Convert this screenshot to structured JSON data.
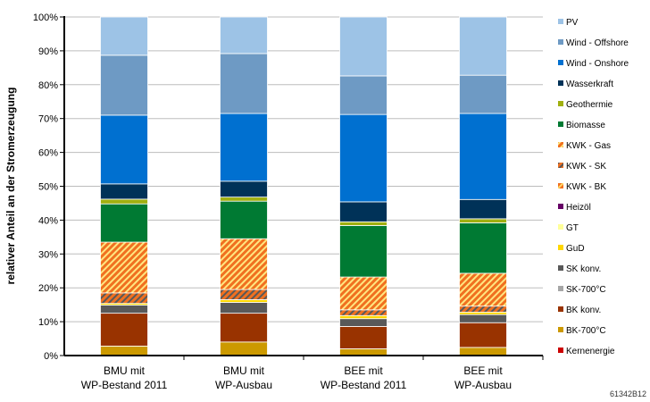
{
  "chart_data": {
    "type": "bar",
    "stacked": true,
    "ylabel": "relativer Anteil an der Stromerzeugung",
    "ylim": [
      0,
      100
    ],
    "yticks": [
      "0%",
      "10%",
      "20%",
      "30%",
      "40%",
      "50%",
      "60%",
      "70%",
      "80%",
      "90%",
      "100%"
    ],
    "grid": true,
    "legend_position": "right",
    "categories": [
      [
        "BMU mit",
        "WP-Bestand 2011"
      ],
      [
        "BMU mit",
        "WP-Ausbau"
      ],
      [
        "BEE mit",
        "WP-Bestand 2011"
      ],
      [
        "BEE mit",
        "WP-Ausbau"
      ]
    ],
    "series": [
      {
        "name": "Kernenergie",
        "color": "#CC0000",
        "values": [
          0,
          0,
          0,
          0
        ]
      },
      {
        "name": "BK-700°C",
        "color": "#CC9900",
        "values": [
          2.8,
          4.0,
          2.0,
          2.4
        ]
      },
      {
        "name": "BK konv.",
        "color": "#993300",
        "values": [
          9.7,
          8.5,
          6.6,
          7.3
        ]
      },
      {
        "name": "SK-700°C",
        "color": "#A6A6A6",
        "values": [
          0,
          0,
          0,
          0
        ]
      },
      {
        "name": "SK konv.",
        "color": "#595959",
        "values": [
          2.4,
          3.2,
          2.3,
          2.4
        ]
      },
      {
        "name": "GuD",
        "color": "#FFD700",
        "values": [
          0.5,
          0.8,
          0.9,
          0.7
        ]
      },
      {
        "name": "GT",
        "color": "#FFFF99",
        "values": [
          0,
          0,
          0,
          0
        ]
      },
      {
        "name": "Heizöl",
        "color": "#660066",
        "values": [
          0,
          0,
          0,
          0
        ]
      },
      {
        "name": "KWK - BK",
        "color": "#F07020",
        "hatch": "#FFD966",
        "values": [
          0,
          0,
          0,
          0
        ]
      },
      {
        "name": "KWK - SK",
        "color": "#F07020",
        "hatch": "#595959",
        "values": [
          3.1,
          3.0,
          1.7,
          1.8
        ]
      },
      {
        "name": "KWK - Gas",
        "color": "#F07020",
        "hatch": "#FFE680",
        "values": [
          15.0,
          15.0,
          9.7,
          9.7
        ]
      },
      {
        "name": "Biomasse",
        "color": "#007A33",
        "values": [
          11.3,
          11.1,
          15.2,
          14.9
        ]
      },
      {
        "name": "Geothermie",
        "color": "#A0B010",
        "values": [
          1.4,
          1.2,
          1.1,
          1.2
        ]
      },
      {
        "name": "Wasserkraft",
        "color": "#003258",
        "values": [
          4.5,
          4.7,
          5.9,
          5.7
        ]
      },
      {
        "name": "Wind - Onshore",
        "color": "#0070D0",
        "values": [
          20.3,
          20.0,
          25.8,
          25.4
        ]
      },
      {
        "name": "Wind - Offshore",
        "color": "#6E9AC4",
        "values": [
          17.7,
          17.7,
          11.4,
          11.3
        ]
      },
      {
        "name": "PV",
        "color": "#9DC3E6",
        "values": [
          11.3,
          10.8,
          17.4,
          17.2
        ]
      }
    ]
  },
  "footer_code": "61342B12"
}
